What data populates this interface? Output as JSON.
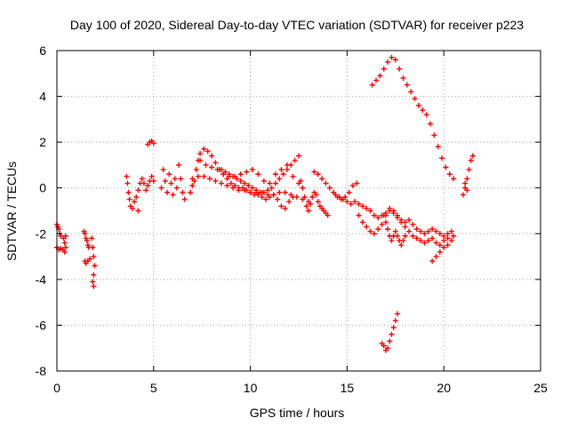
{
  "chart_data": {
    "type": "scatter",
    "title": "Day 100 of 2020, Sidereal Day-to-day VTEC variation (SDTVAR) for receiver p223",
    "xlabel": "GPS time / hours",
    "ylabel": "SDTVAR / TECUs",
    "xlim": [
      0,
      25
    ],
    "ylim": [
      -8,
      6
    ],
    "xticks": [
      0,
      5,
      10,
      15,
      20,
      25
    ],
    "xtick_labels": [
      "0",
      "5",
      "10",
      "15",
      "20",
      "25"
    ],
    "yticks": [
      -8,
      -6,
      -4,
      -2,
      0,
      2,
      4,
      6
    ],
    "ytick_labels": [
      "-8",
      "-6",
      "-4",
      "-2",
      "0",
      "2",
      "4",
      "6"
    ],
    "grid": true,
    "legend": "none",
    "marker": "+",
    "color": "#ff0000",
    "series": [
      {
        "name": "s1",
        "x": [
          0.0,
          0.05,
          0.1,
          0.15,
          0.2
        ],
        "y": [
          -1.6,
          -1.7,
          -1.8,
          -2.0,
          -2.1
        ]
      },
      {
        "name": "s2",
        "x": [
          0.0,
          0.1,
          0.2,
          0.3
        ],
        "y": [
          -2.6,
          -2.7,
          -2.65,
          -2.7
        ]
      },
      {
        "name": "s3",
        "x": [
          0.35,
          0.4,
          0.45,
          0.4,
          0.45
        ],
        "y": [
          -2.2,
          -2.4,
          -2.6,
          -2.8,
          -2.1
        ]
      },
      {
        "name": "s4",
        "x": [
          1.4,
          1.45,
          1.5,
          1.55,
          1.6,
          1.65
        ],
        "y": [
          -1.9,
          -2.0,
          -2.2,
          -2.3,
          -2.5,
          -2.6
        ]
      },
      {
        "name": "s5",
        "x": [
          1.45,
          1.5,
          1.6,
          1.7
        ],
        "y": [
          -3.2,
          -3.3,
          -3.2,
          -3.1
        ]
      },
      {
        "name": "s6",
        "x": [
          1.8,
          1.85,
          1.9,
          1.95,
          1.9,
          1.85,
          1.9
        ],
        "y": [
          -2.2,
          -2.6,
          -3.0,
          -3.4,
          -3.8,
          -4.1,
          -4.3
        ]
      },
      {
        "name": "s7",
        "x": [
          3.6,
          3.65,
          3.7,
          3.75,
          3.8,
          3.9,
          4.0,
          4.1,
          4.2
        ],
        "y": [
          0.5,
          0.2,
          -0.2,
          -0.5,
          -0.8,
          -0.9,
          -0.6,
          -0.4,
          -1.0
        ]
      },
      {
        "name": "s8",
        "x": [
          4.2,
          4.3,
          4.4,
          4.5,
          4.6,
          4.7,
          4.8,
          4.9,
          5.0
        ],
        "y": [
          -0.1,
          0.2,
          0.4,
          0.2,
          -0.1,
          0.1,
          0.3,
          0.5,
          0.3
        ]
      },
      {
        "name": "s9",
        "x": [
          4.7,
          4.8,
          4.9,
          5.0
        ],
        "y": [
          1.9,
          2.0,
          2.05,
          1.95
        ]
      },
      {
        "name": "s10",
        "x": [
          5.4,
          5.5,
          5.6,
          5.7,
          5.8,
          5.9,
          6.0,
          6.1,
          6.2
        ],
        "y": [
          0.0,
          0.8,
          0.3,
          -0.2,
          0.6,
          0.2,
          -0.3,
          0.4,
          0.0
        ]
      },
      {
        "name": "s11",
        "x": [
          6.3,
          6.4,
          6.5,
          6.6
        ],
        "y": [
          1.0,
          0.4,
          -0.2,
          -0.5
        ]
      },
      {
        "name": "s12",
        "x": [
          6.9,
          7.0,
          7.1,
          7.2,
          7.3,
          7.4,
          7.6,
          7.8,
          8.0,
          8.2,
          8.4,
          8.6,
          8.8,
          9.0,
          9.2,
          9.4,
          9.6,
          9.8,
          10.0,
          10.2,
          10.4,
          10.6,
          10.8,
          11.0,
          11.2,
          11.4,
          11.6,
          11.8,
          12.0,
          12.2
        ],
        "y": [
          -0.2,
          0.1,
          0.3,
          0.8,
          1.2,
          1.5,
          1.7,
          1.6,
          1.4,
          1.1,
          0.8,
          0.6,
          0.4,
          0.2,
          0.1,
          0.0,
          0.0,
          -0.1,
          -0.2,
          -0.3,
          -0.3,
          -0.4,
          -0.5,
          -0.4,
          -0.3,
          -0.5,
          -0.8,
          -0.9,
          -0.6,
          -0.4
        ]
      },
      {
        "name": "s13",
        "x": [
          7.0,
          7.3,
          7.6,
          7.9,
          8.2,
          8.5,
          8.8,
          9.1,
          9.4,
          9.7,
          10.0,
          10.3,
          10.6,
          10.9,
          11.2,
          11.5,
          11.8,
          12.1,
          12.4,
          12.7,
          13.0
        ],
        "y": [
          0.4,
          0.5,
          0.5,
          0.4,
          0.3,
          0.2,
          0.1,
          0.0,
          -0.1,
          -0.1,
          -0.2,
          -0.2,
          -0.2,
          -0.3,
          -0.3,
          -0.2,
          -0.2,
          -0.3,
          -0.4,
          -0.5,
          -0.6
        ]
      },
      {
        "name": "s14",
        "x": [
          7.4,
          7.7,
          8.0,
          8.3,
          8.6,
          8.9,
          9.2,
          9.5,
          9.8,
          10.1,
          10.4,
          10.7,
          11.0,
          11.3,
          11.6,
          11.9,
          12.2,
          12.5
        ],
        "y": [
          1.2,
          1.0,
          0.9,
          0.8,
          0.6,
          0.5,
          0.5,
          0.6,
          0.7,
          0.8,
          0.6,
          0.3,
          0.2,
          0.6,
          0.8,
          1.0,
          0.5,
          0.2
        ]
      },
      {
        "name": "s15",
        "x": [
          8.5,
          8.7,
          8.9,
          9.1,
          9.3,
          9.5,
          9.7,
          9.9,
          10.1,
          10.3,
          10.5,
          10.7,
          10.9,
          11.1,
          11.3,
          11.5,
          11.7,
          11.9,
          12.1,
          12.3,
          12.5
        ],
        "y": [
          0.8,
          0.7,
          0.6,
          0.5,
          0.4,
          0.3,
          0.2,
          0.1,
          0.0,
          -0.1,
          -0.2,
          -0.2,
          -0.1,
          0.0,
          0.2,
          0.4,
          0.6,
          0.8,
          1.0,
          1.2,
          1.4
        ]
      },
      {
        "name": "s16",
        "x": [
          12.6,
          12.7,
          12.8,
          12.9,
          13.0,
          13.1,
          13.2,
          13.3,
          13.4,
          13.5,
          13.6,
          13.7,
          13.8,
          13.9,
          14.0
        ],
        "y": [
          0.3,
          0.0,
          -0.4,
          -0.8,
          -1.0,
          -0.7,
          -0.4,
          -0.2,
          -0.3,
          -0.6,
          -0.8,
          -0.9,
          -1.0,
          -1.1,
          -1.2
        ]
      },
      {
        "name": "s17",
        "x": [
          13.3,
          13.5,
          13.7,
          13.9,
          14.1,
          14.3,
          14.5,
          14.7,
          14.9,
          15.1,
          15.3,
          15.5
        ],
        "y": [
          0.7,
          0.6,
          0.4,
          0.2,
          0.0,
          -0.2,
          -0.4,
          -0.5,
          -0.4,
          -0.2,
          0.1,
          0.2
        ]
      },
      {
        "name": "s18",
        "x": [
          14.4,
          14.6,
          14.8,
          15.0,
          15.2,
          15.4,
          15.6,
          15.8,
          16.0,
          16.2,
          16.4,
          16.6,
          16.8,
          17.0,
          17.2,
          17.4,
          17.6,
          17.8,
          18.0,
          18.2,
          18.4,
          18.6,
          18.8,
          19.0,
          19.2,
          19.4,
          19.6,
          19.8,
          20.0,
          20.2,
          20.4
        ],
        "y": [
          -0.3,
          -0.4,
          -0.5,
          -0.6,
          -0.7,
          -0.6,
          -0.7,
          -0.8,
          -0.9,
          -1.0,
          -1.2,
          -1.3,
          -1.2,
          -1.1,
          -1.0,
          -1.1,
          -1.2,
          -1.4,
          -1.5,
          -1.4,
          -1.6,
          -1.8,
          -1.9,
          -2.0,
          -1.9,
          -1.8,
          -1.9,
          -2.0,
          -2.1,
          -2.0,
          -1.9
        ]
      },
      {
        "name": "s19",
        "x": [
          15.6,
          15.8,
          16.0,
          16.2,
          16.4,
          16.6,
          16.8,
          17.0,
          17.2,
          17.4,
          17.6,
          17.8,
          18.0,
          18.2,
          18.4,
          18.6,
          18.8,
          19.0,
          19.2,
          19.4,
          19.6,
          19.8,
          20.0,
          20.2
        ],
        "y": [
          -1.2,
          -1.5,
          -1.7,
          -1.9,
          -2.0,
          -1.8,
          -1.6,
          -1.2,
          -0.9,
          -1.0,
          -1.3,
          -1.5,
          -1.7,
          -1.9,
          -2.1,
          -2.2,
          -2.3,
          -2.4,
          -2.3,
          -2.2,
          -2.4,
          -2.5,
          -2.3,
          -2.2
        ]
      },
      {
        "name": "s20",
        "x": [
          16.9,
          17.0,
          17.1,
          17.2,
          17.3,
          17.4,
          17.5,
          17.6,
          17.7,
          17.8,
          17.9,
          18.0
        ],
        "y": [
          -1.2,
          -1.5,
          -1.8,
          -2.1,
          -2.3,
          -2.1,
          -1.9,
          -2.1,
          -2.3,
          -2.5,
          -2.3,
          -2.1
        ]
      },
      {
        "name": "s21",
        "x": [
          19.4,
          19.6,
          19.8,
          20.0,
          20.2,
          20.4,
          20.5
        ],
        "y": [
          -3.2,
          -3.0,
          -2.8,
          -2.6,
          -2.5,
          -2.3,
          -2.1
        ]
      },
      {
        "name": "s22",
        "x": [
          16.3,
          16.5,
          16.7,
          16.9,
          17.1,
          17.3,
          17.5,
          17.7,
          17.9,
          18.1,
          18.3,
          18.5,
          18.7,
          18.9,
          19.1,
          19.3,
          19.5,
          19.7,
          19.9,
          20.1,
          20.3,
          20.5
        ],
        "y": [
          4.5,
          4.7,
          4.9,
          5.2,
          5.5,
          5.7,
          5.6,
          5.2,
          4.8,
          4.5,
          4.2,
          3.9,
          3.6,
          3.4,
          3.2,
          2.8,
          2.3,
          1.8,
          1.3,
          0.9,
          0.6,
          0.4
        ]
      },
      {
        "name": "s23",
        "x": [
          21.0,
          21.1,
          21.2,
          21.3,
          21.4,
          21.5,
          21.1,
          21.2
        ],
        "y": [
          -0.3,
          0.0,
          0.4,
          0.8,
          1.2,
          1.4,
          0.2,
          -0.1
        ]
      },
      {
        "name": "s24",
        "x": [
          16.8,
          16.9,
          17.0,
          17.1,
          17.2,
          17.3,
          17.4,
          17.5,
          17.6
        ],
        "y": [
          -6.8,
          -6.9,
          -7.1,
          -7.0,
          -6.7,
          -6.4,
          -6.1,
          -5.8,
          -5.5
        ]
      }
    ]
  }
}
